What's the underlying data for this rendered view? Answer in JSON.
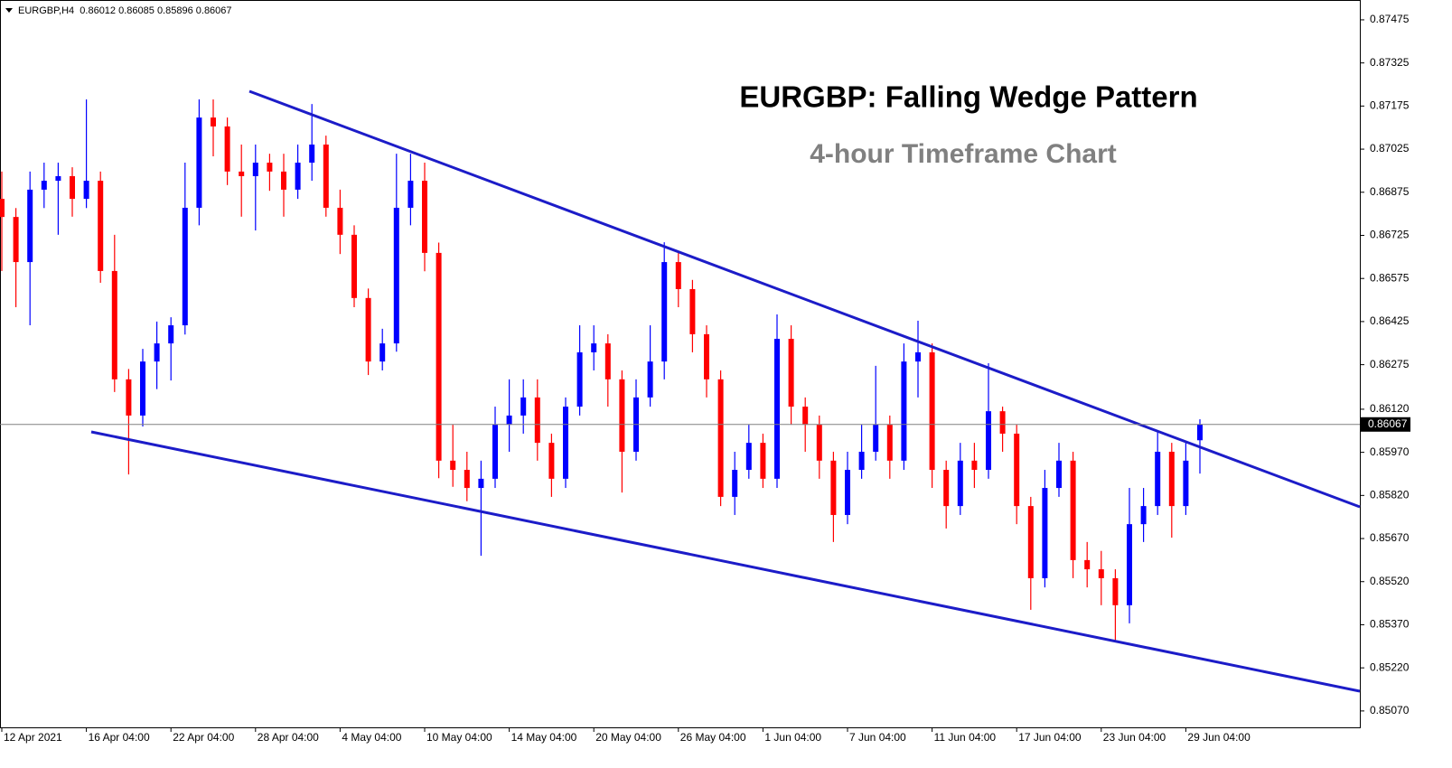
{
  "chart_data": {
    "type": "candlestick",
    "symbol": "EURGBP,H4",
    "title": "EURGBP: Falling Wedge Pattern",
    "subtitle": "4-hour Timeframe Chart",
    "up_color": "#0000ff",
    "down_color": "#ff0000",
    "categories": [
      "12 Apr 2021",
      null,
      null,
      null,
      null,
      null,
      "16 Apr 04:00",
      null,
      null,
      null,
      null,
      null,
      "22 Apr 04:00",
      null,
      null,
      null,
      null,
      null,
      "28 Apr 04:00",
      null,
      null,
      null,
      null,
      null,
      "4 May 04:00",
      null,
      null,
      null,
      null,
      null,
      "10 May 04:00",
      null,
      null,
      null,
      null,
      null,
      "14 May 04:00",
      null,
      null,
      null,
      null,
      null,
      "20 May 04:00",
      null,
      null,
      null,
      null,
      null,
      "26 May 04:00",
      null,
      null,
      null,
      null,
      null,
      "1 Jun 04:00",
      null,
      null,
      null,
      null,
      null,
      "7 Jun 04:00",
      null,
      null,
      null,
      null,
      null,
      "11 Jun 04:00",
      null,
      null,
      null,
      null,
      null,
      "17 Jun 04:00",
      null,
      null,
      null,
      null,
      null,
      "23 Jun 04:00",
      null,
      null,
      null,
      null,
      null,
      "29 Jun 04:00",
      null
    ],
    "open": [
      0.86852,
      0.86789,
      0.86632,
      0.86884,
      0.86915,
      0.86931,
      0.86852,
      0.86915,
      0.86601,
      0.86224,
      0.86098,
      0.86286,
      0.86349,
      0.86412,
      0.86821,
      0.87135,
      0.87104,
      0.86947,
      0.86931,
      0.86978,
      0.86947,
      0.86884,
      0.86978,
      0.87041,
      0.86821,
      0.86727,
      0.86507,
      0.86286,
      0.86349,
      0.86821,
      0.86915,
      0.86664,
      0.85941,
      0.85909,
      0.85846,
      0.85878,
      0.86066,
      0.86098,
      0.86161,
      0.86003,
      0.85878,
      0.86129,
      0.86318,
      0.86349,
      0.86224,
      0.85972,
      0.86161,
      0.86286,
      0.86632,
      0.86538,
      0.86381,
      0.86224,
      0.85815,
      0.85909,
      0.86003,
      0.85878,
      0.86365,
      0.86129,
      0.86066,
      0.85941,
      0.85752,
      0.85909,
      0.85972,
      0.86066,
      0.85941,
      0.86286,
      0.86318,
      0.85909,
      0.85783,
      0.85941,
      0.85909,
      0.86113,
      0.86035,
      0.85783,
      0.85532,
      0.85846,
      0.85941,
      0.85595,
      0.85563,
      0.85532,
      0.85438,
      0.8572,
      0.85783,
      0.85972,
      0.85783,
      0.86012
    ],
    "high": [
      0.86947,
      0.8682,
      0.86947,
      0.86978,
      0.86978,
      0.86962,
      0.87198,
      0.86947,
      0.86727,
      0.8626,
      0.8633,
      0.86425,
      0.8644,
      0.86978,
      0.87198,
      0.87198,
      0.87135,
      0.87041,
      0.87041,
      0.87009,
      0.87009,
      0.87041,
      0.87182,
      0.87072,
      0.86884,
      0.8676,
      0.8654,
      0.864,
      0.87009,
      0.87009,
      0.86978,
      0.867,
      0.86066,
      0.85972,
      0.85941,
      0.86129,
      0.86224,
      0.86224,
      0.86224,
      0.86035,
      0.86161,
      0.86412,
      0.86412,
      0.86381,
      0.86255,
      0.86224,
      0.86412,
      0.86701,
      0.86664,
      0.8657,
      0.86412,
      0.86255,
      0.85972,
      0.86066,
      0.86035,
      0.8645,
      0.86412,
      0.86161,
      0.86098,
      0.85972,
      0.85972,
      0.86066,
      0.86271,
      0.86098,
      0.86349,
      0.86428,
      0.86349,
      0.85941,
      0.86003,
      0.86003,
      0.8628,
      0.86129,
      0.86066,
      0.85815,
      0.85909,
      0.86003,
      0.85972,
      0.85658,
      0.85627,
      0.85563,
      0.85846,
      0.85846,
      0.86041,
      0.86003,
      0.86003,
      0.86085
    ],
    "low": [
      0.86601,
      0.86475,
      0.86412,
      0.8682,
      0.86727,
      0.8679,
      0.8682,
      0.8656,
      0.8618,
      0.85893,
      0.8606,
      0.8619,
      0.8622,
      0.8638,
      0.8676,
      0.87,
      0.869,
      0.8679,
      0.86742,
      0.8688,
      0.8679,
      0.86852,
      0.86915,
      0.8679,
      0.8666,
      0.86475,
      0.86239,
      0.86255,
      0.8632,
      0.8676,
      0.866,
      0.8588,
      0.8585,
      0.858,
      0.8561,
      0.85846,
      0.85972,
      0.86035,
      0.85941,
      0.85815,
      0.85846,
      0.86098,
      0.86255,
      0.86129,
      0.8583,
      0.85941,
      0.86129,
      0.86224,
      0.86475,
      0.86318,
      0.86161,
      0.85783,
      0.85752,
      0.85878,
      0.85846,
      0.85846,
      0.86066,
      0.85972,
      0.85878,
      0.85658,
      0.8572,
      0.85878,
      0.85941,
      0.85878,
      0.85909,
      0.86161,
      0.85846,
      0.85705,
      0.85752,
      0.85846,
      0.85878,
      0.85972,
      0.8572,
      0.85422,
      0.855,
      0.85815,
      0.85532,
      0.855,
      0.85438,
      0.85312,
      0.85375,
      0.85658,
      0.85752,
      0.85673,
      0.85752,
      0.85896
    ],
    "close": [
      0.86789,
      0.86632,
      0.86884,
      0.86915,
      0.86931,
      0.86852,
      0.86915,
      0.86601,
      0.86224,
      0.86098,
      0.86286,
      0.86349,
      0.86412,
      0.86821,
      0.87135,
      0.87104,
      0.86947,
      0.86931,
      0.86978,
      0.86947,
      0.86884,
      0.86978,
      0.87041,
      0.86821,
      0.86727,
      0.86507,
      0.86286,
      0.86349,
      0.86821,
      0.86915,
      0.86664,
      0.85941,
      0.85909,
      0.85846,
      0.85878,
      0.86066,
      0.86098,
      0.86161,
      0.86003,
      0.85878,
      0.86129,
      0.86318,
      0.86349,
      0.86224,
      0.85972,
      0.86161,
      0.86286,
      0.86632,
      0.86538,
      0.86381,
      0.86224,
      0.85815,
      0.85909,
      0.86003,
      0.85878,
      0.86365,
      0.86129,
      0.86066,
      0.85941,
      0.85752,
      0.85909,
      0.85972,
      0.86066,
      0.85941,
      0.86286,
      0.86318,
      0.85909,
      0.85783,
      0.85941,
      0.85909,
      0.86113,
      0.86035,
      0.85783,
      0.85532,
      0.85846,
      0.85941,
      0.85595,
      0.85563,
      0.85532,
      0.85438,
      0.8572,
      0.85783,
      0.85972,
      0.85783,
      0.85941,
      0.86067
    ],
    "ylim": [
      0.85013,
      0.87544
    ],
    "yticks": [
      0.87475,
      0.87325,
      0.87175,
      0.87025,
      0.86875,
      0.86725,
      0.86575,
      0.86425,
      0.86275,
      {
        "value": 0.8612,
        "label": "0.86120"
      },
      {
        "value": 0.8597,
        "label": "0.85970"
      },
      {
        "value": 0.8582,
        "label": "0.85820"
      },
      {
        "value": 0.8567,
        "label": "0.85670"
      },
      {
        "value": 0.8552,
        "label": "0.85520"
      },
      {
        "value": 0.8537,
        "label": "0.85370"
      },
      {
        "value": 0.8522,
        "label": "0.85220"
      },
      {
        "value": 0.8507,
        "label": "0.85070"
      }
    ]
  }
}
